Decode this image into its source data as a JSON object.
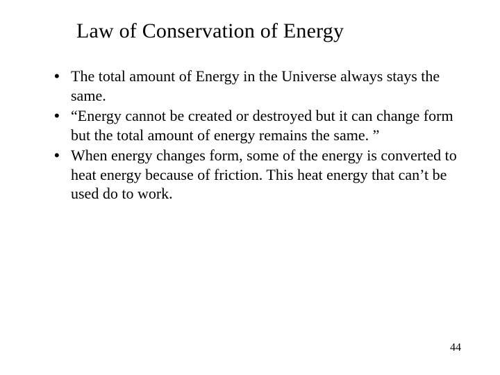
{
  "slide": {
    "title": "Law of Conservation of Energy",
    "bullets": [
      "The total amount of Energy in the Universe always stays the same.",
      "“Energy cannot be created or destroyed but it can change form but the total amount of energy remains the same. ”",
      "When energy changes form, some of the energy is converted to heat energy because of friction.  This heat energy that can’t be used do to work."
    ],
    "page_number": "44"
  },
  "style": {
    "background_color": "#ffffff",
    "text_color": "#000000",
    "title_fontsize": 30,
    "body_fontsize": 22,
    "font_family_title": "Times New Roman",
    "font_family_body": "Times New Roman",
    "bullet_char": "•"
  }
}
